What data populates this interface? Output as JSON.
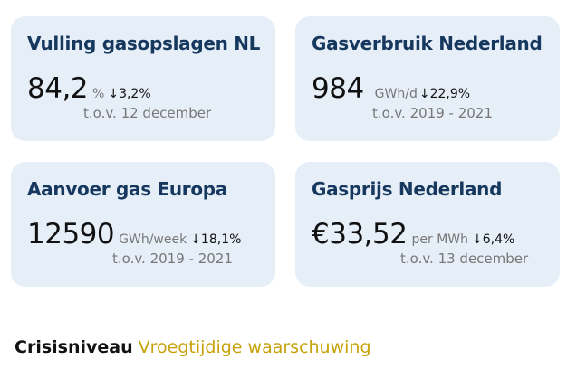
{
  "cards": [
    {
      "title": "Vulling gasopslagen NL",
      "value": "84,2",
      "unit": "%",
      "change": "↓3,2%",
      "compare": "t.o.v. 12 december"
    },
    {
      "title": "Gasverbruik Nederland",
      "value": "984",
      "unit": "GWh/d",
      "change": "↓22,9%",
      "compare": "t.o.v. 2019 - 2021"
    },
    {
      "title": "Aanvoer gas Europa",
      "value": "12590",
      "unit": "GWh/week",
      "change": "↓18,1%",
      "compare": "t.o.v. 2019 - 2021"
    },
    {
      "title": "Gasprijs Nederland",
      "value": "€33,52",
      "unit": "per MWh",
      "change": "↓6,4%",
      "compare": "t.o.v. 13 december"
    }
  ],
  "footer": {
    "label": "Crisisniveau",
    "value": "Vroegtijdige waarschuwing"
  },
  "colors": {
    "card_bg": "#e6eef8",
    "title": "#17385e",
    "crisis_level": "#c7a20a"
  }
}
